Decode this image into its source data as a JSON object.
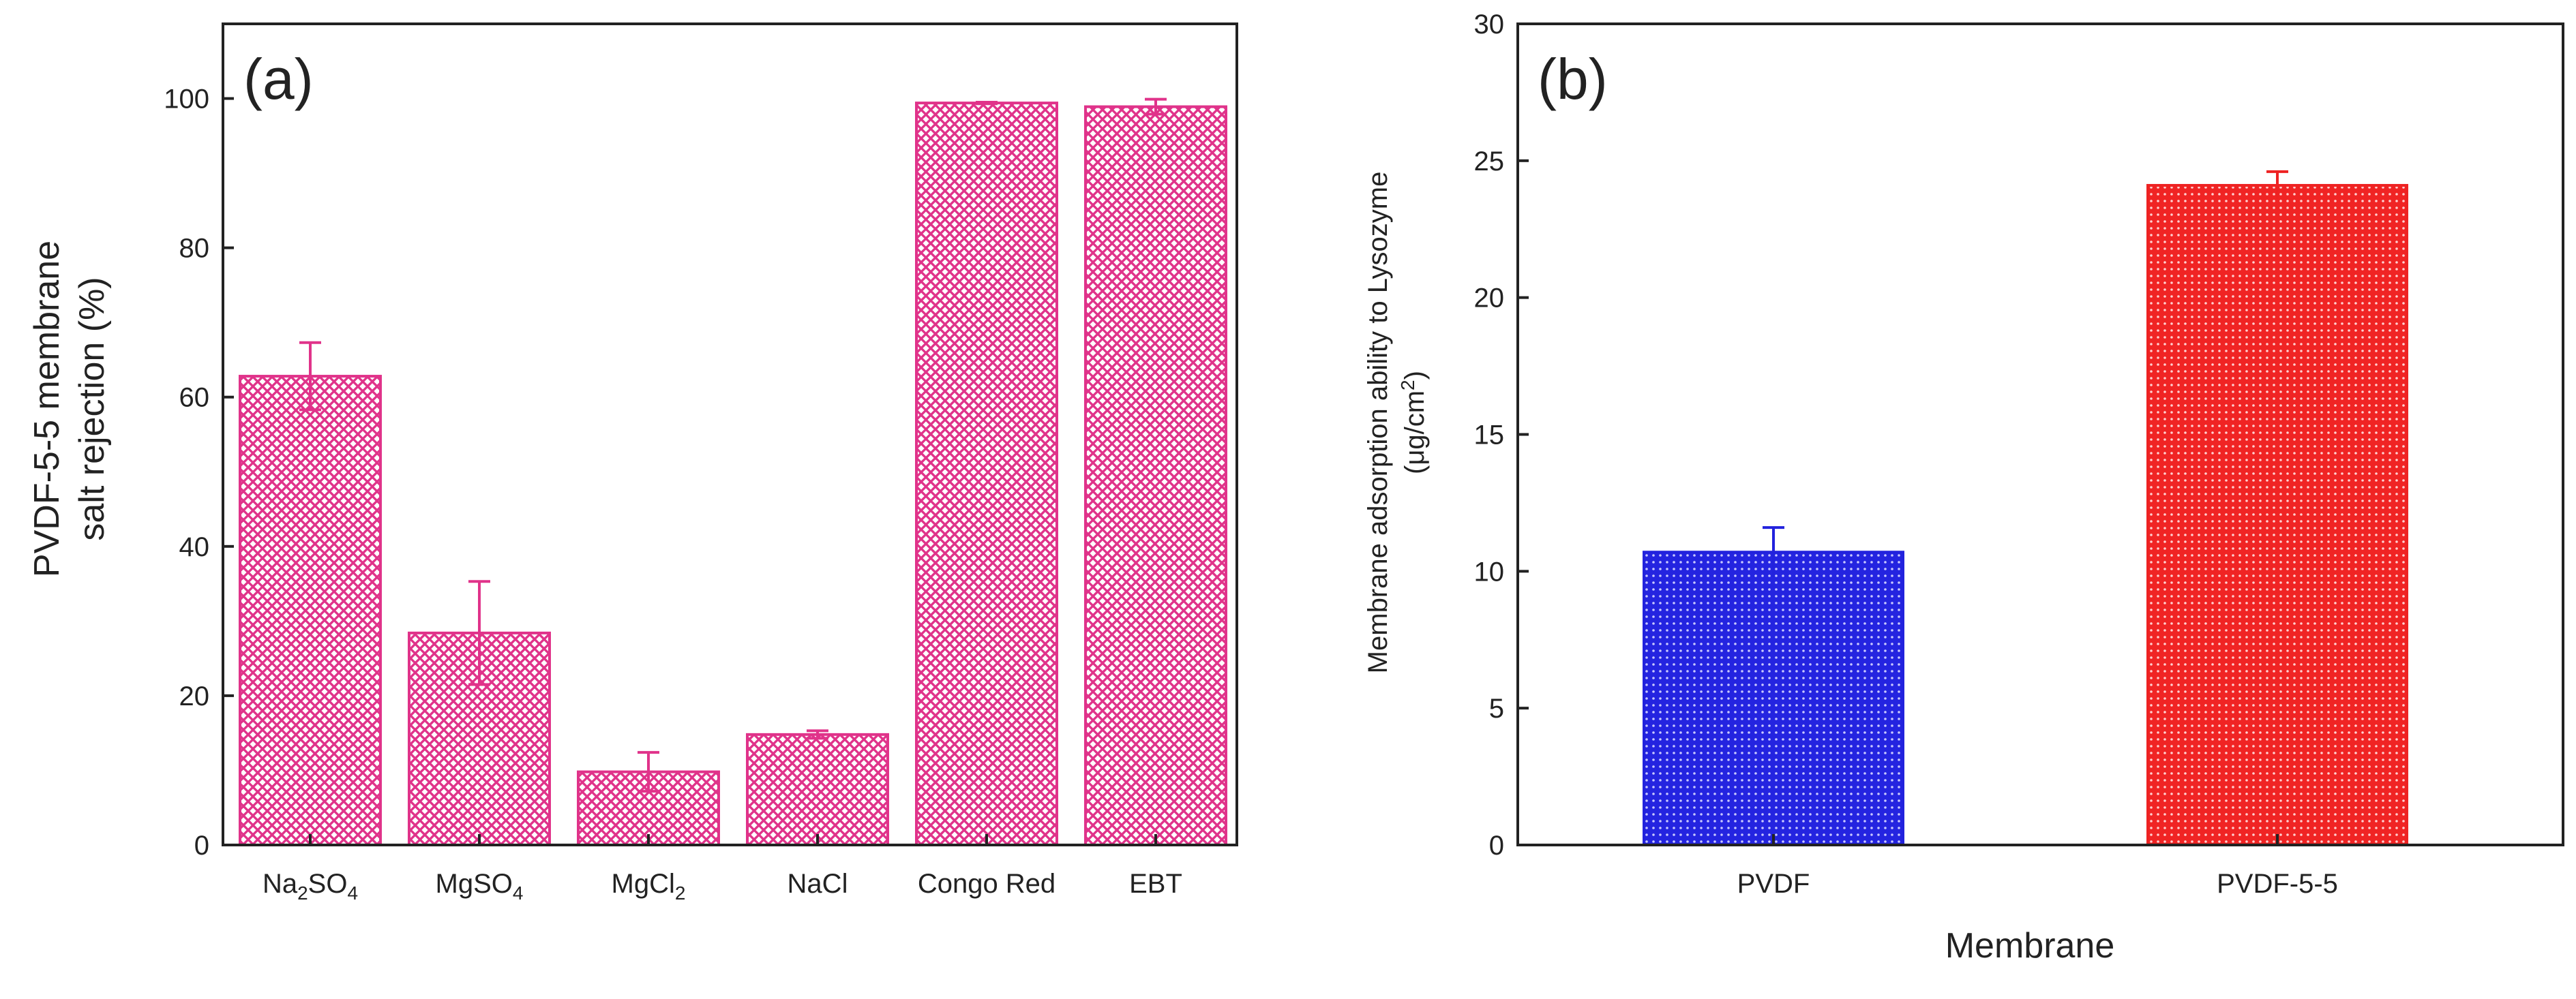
{
  "chart_data": [
    {
      "panel": "(a)",
      "type": "bar",
      "title": "",
      "categories": [
        "Na2SO4",
        "MgSO4",
        "MgCl2",
        "NaCl",
        "Congo Red",
        "EBT"
      ],
      "category_labels": [
        {
          "base": "Na",
          "sub1": "2",
          "mid": "SO",
          "sub2": "4"
        },
        {
          "base": "MgSO",
          "sub1": "4",
          "mid": "",
          "sub2": ""
        },
        {
          "base": "MgCl",
          "sub1": "2",
          "mid": "",
          "sub2": ""
        },
        {
          "base": "NaCl",
          "sub1": "",
          "mid": "",
          "sub2": ""
        },
        {
          "base": "Congo Red",
          "sub1": "",
          "mid": "",
          "sub2": ""
        },
        {
          "base": "EBT",
          "sub1": "",
          "mid": "",
          "sub2": ""
        }
      ],
      "values": [
        62.8,
        28.4,
        9.8,
        14.8,
        99.4,
        98.9
      ],
      "errors": [
        4.5,
        6.9,
        2.6,
        0.5,
        0.1,
        1.0
      ],
      "ylabel_line1": "PVDF-5-5 membrane",
      "ylabel_line2": "salt rejection (%)",
      "xlabel": "",
      "ylim": [
        0,
        110
      ],
      "yticks": [
        0,
        20,
        40,
        60,
        80,
        100
      ],
      "bar_color": "#e0338a",
      "pattern": "crosshatch"
    },
    {
      "panel": "(b)",
      "type": "bar",
      "title": "",
      "categories": [
        "PVDF",
        "PVDF-5-5"
      ],
      "values": [
        10.7,
        24.1
      ],
      "errors": [
        0.9,
        0.5
      ],
      "colors": [
        "#2222dd",
        "#ee2222"
      ],
      "ylabel_line1": "Membrane adsorption ability to Lysozyme",
      "ylabel_line2_base": "(μg/cm",
      "ylabel_line2_sup": "2",
      "ylabel_line2_end": ")",
      "xlabel": "Membrane",
      "ylim": [
        0,
        30
      ],
      "yticks": [
        0,
        5,
        10,
        15,
        20,
        25,
        30
      ],
      "pattern": "dots"
    }
  ]
}
